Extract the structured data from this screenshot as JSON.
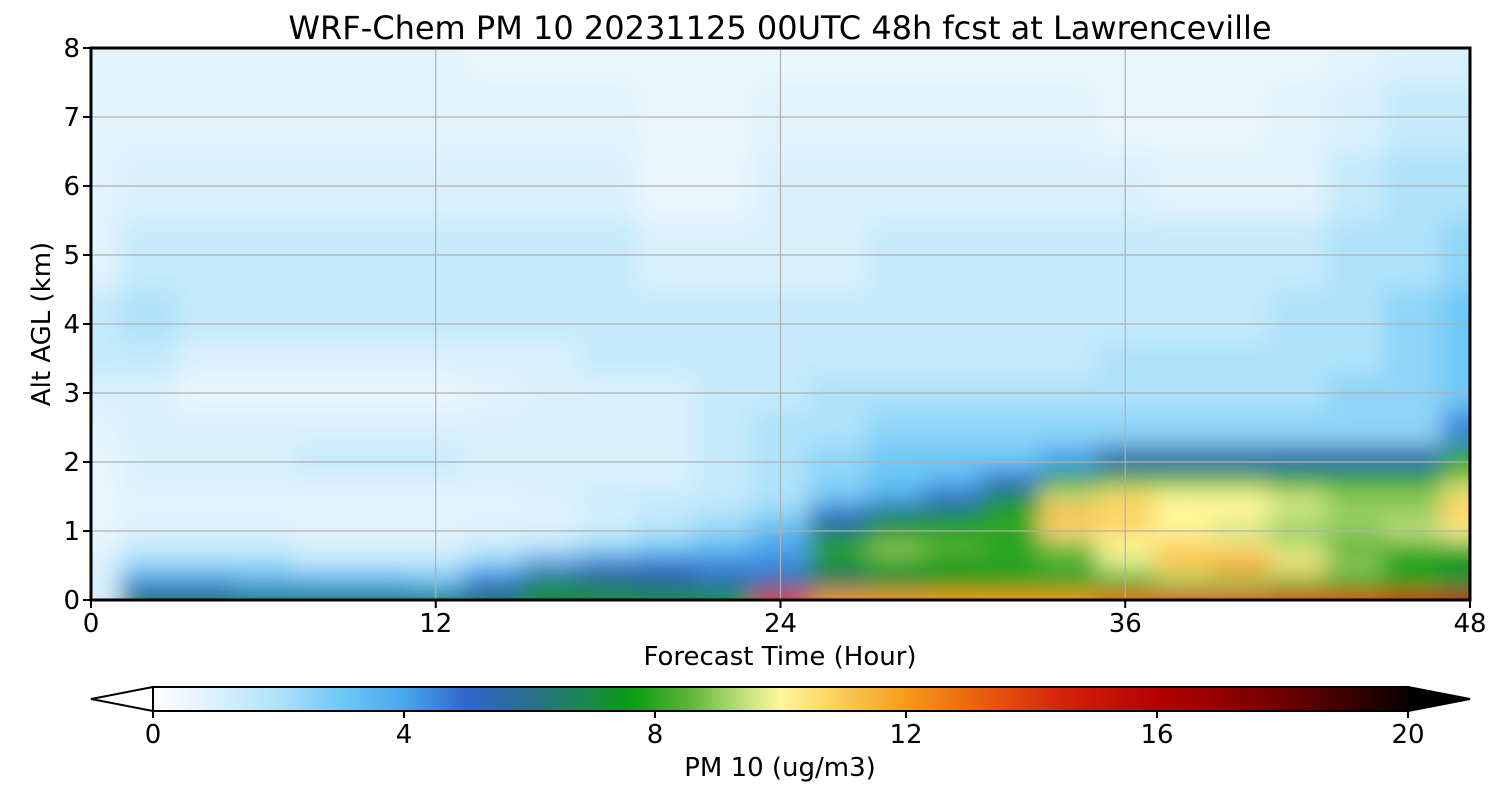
{
  "chart_data": {
    "type": "heatmap",
    "title": "WRF-Chem PM 10  20231125 00UTC 48h fcst at Lawrenceville",
    "xlabel": "Forecast Time (Hour)",
    "ylabel": "Alt AGL (km)",
    "xlim": [
      0,
      48
    ],
    "ylim": [
      0,
      8
    ],
    "x_ticks": [
      "0",
      "12",
      "24",
      "36",
      "48"
    ],
    "y_ticks": [
      "0",
      "1",
      "2",
      "3",
      "4",
      "5",
      "6",
      "7",
      "8"
    ],
    "grid": true,
    "x": [
      0,
      2,
      4,
      6,
      8,
      10,
      12,
      14,
      16,
      18,
      20,
      22,
      24,
      26,
      28,
      30,
      32,
      34,
      36,
      38,
      40,
      42,
      44,
      46,
      48
    ],
    "y": [
      0,
      0.25,
      0.5,
      0.75,
      1,
      1.25,
      1.5,
      1.75,
      2,
      2.5,
      3,
      3.5,
      4,
      5,
      6,
      7,
      8
    ],
    "values": [
      [
        1.0,
        6.5,
        6.5,
        6.5,
        6.5,
        6.5,
        6.5,
        6.5,
        7.0,
        7.0,
        7.0,
        7.5,
        14.0,
        12.0,
        12.0,
        12.0,
        12.0,
        12.0,
        13.0,
        14.0,
        14.0,
        14.0,
        14.0,
        15.0,
        16.0
      ],
      [
        1.0,
        4.5,
        4.5,
        4.0,
        4.0,
        4.0,
        3.5,
        5.0,
        7.0,
        6.5,
        6.0,
        5.5,
        5.5,
        6.5,
        7.0,
        7.5,
        7.5,
        7.5,
        8.0,
        9.0,
        9.0,
        8.5,
        8.0,
        7.5,
        7.0
      ],
      [
        1.0,
        2.5,
        2.5,
        2.5,
        2.0,
        2.0,
        2.0,
        3.0,
        4.5,
        5.0,
        5.0,
        4.5,
        4.5,
        7.0,
        7.5,
        7.5,
        8.0,
        8.5,
        9.5,
        11.0,
        12.0,
        10.5,
        9.0,
        8.0,
        7.5
      ],
      [
        0.8,
        1.5,
        1.5,
        1.5,
        1.0,
        1.0,
        1.0,
        1.5,
        2.0,
        2.5,
        3.0,
        3.5,
        4.0,
        8.0,
        9.0,
        8.5,
        8.0,
        8.5,
        10.0,
        11.0,
        10.5,
        9.5,
        8.5,
        8.0,
        8.0
      ],
      [
        0.6,
        1.0,
        1.0,
        1.0,
        0.8,
        0.8,
        0.8,
        1.0,
        1.0,
        1.5,
        2.0,
        2.5,
        3.5,
        6.5,
        7.5,
        8.0,
        8.0,
        10.5,
        10.5,
        10.0,
        9.5,
        9.0,
        9.0,
        9.5,
        10.0
      ],
      [
        0.6,
        0.8,
        0.8,
        0.8,
        0.8,
        0.8,
        0.8,
        0.8,
        0.8,
        1.0,
        1.5,
        2.0,
        2.5,
        5.0,
        6.5,
        7.0,
        8.0,
        11.5,
        11.0,
        10.0,
        10.0,
        9.5,
        9.0,
        9.0,
        11.0
      ],
      [
        0.6,
        0.8,
        0.8,
        0.8,
        0.8,
        0.8,
        0.8,
        0.8,
        1.0,
        1.5,
        1.5,
        1.5,
        2.0,
        3.0,
        4.0,
        5.0,
        7.0,
        9.5,
        10.5,
        10.0,
        10.0,
        9.5,
        9.0,
        9.0,
        10.5
      ],
      [
        0.6,
        1.0,
        1.0,
        1.0,
        1.0,
        1.0,
        1.0,
        1.0,
        1.0,
        1.0,
        1.0,
        1.5,
        2.0,
        2.5,
        3.0,
        3.5,
        5.0,
        7.5,
        8.5,
        8.5,
        8.5,
        8.0,
        8.0,
        8.0,
        9.0
      ],
      [
        0.6,
        1.0,
        1.0,
        1.0,
        1.5,
        1.5,
        1.5,
        1.0,
        1.0,
        1.0,
        1.0,
        1.5,
        2.0,
        2.5,
        3.0,
        3.0,
        3.0,
        4.0,
        5.5,
        5.5,
        5.5,
        5.5,
        5.5,
        5.5,
        8.0
      ],
      [
        0.8,
        1.0,
        1.0,
        1.0,
        1.0,
        1.0,
        1.0,
        1.0,
        1.0,
        1.0,
        1.0,
        1.5,
        2.0,
        2.0,
        2.5,
        2.5,
        2.5,
        2.5,
        2.5,
        2.5,
        2.5,
        2.5,
        2.5,
        2.5,
        4.5
      ],
      [
        1.0,
        1.0,
        0.6,
        0.6,
        0.6,
        0.6,
        0.6,
        0.8,
        1.0,
        1.0,
        1.0,
        1.5,
        1.5,
        2.0,
        2.0,
        2.0,
        2.0,
        2.0,
        2.0,
        2.0,
        2.0,
        2.0,
        2.5,
        2.5,
        3.0
      ],
      [
        1.5,
        1.5,
        1.0,
        1.0,
        1.0,
        1.0,
        1.0,
        1.0,
        1.0,
        1.5,
        1.5,
        1.5,
        1.5,
        1.5,
        1.5,
        1.5,
        1.5,
        1.5,
        2.0,
        2.0,
        2.0,
        2.0,
        2.0,
        2.5,
        3.0
      ],
      [
        1.5,
        2.0,
        1.5,
        1.5,
        1.5,
        1.5,
        1.5,
        1.5,
        1.5,
        1.5,
        1.5,
        1.5,
        1.5,
        1.5,
        1.5,
        1.5,
        1.5,
        1.5,
        1.5,
        1.5,
        1.5,
        2.0,
        2.0,
        2.5,
        3.0
      ],
      [
        0.8,
        1.5,
        1.5,
        1.5,
        1.5,
        1.5,
        1.5,
        1.5,
        1.5,
        1.5,
        1.0,
        1.0,
        1.0,
        1.0,
        1.5,
        1.5,
        1.5,
        1.5,
        1.5,
        1.5,
        1.5,
        1.5,
        2.0,
        2.0,
        2.5
      ],
      [
        0.8,
        1.0,
        1.0,
        1.0,
        1.0,
        1.0,
        1.0,
        1.0,
        1.0,
        1.0,
        0.6,
        0.6,
        1.0,
        1.0,
        1.0,
        1.0,
        1.0,
        1.0,
        1.0,
        0.8,
        0.8,
        0.8,
        1.5,
        2.0,
        2.0
      ],
      [
        0.8,
        0.8,
        0.8,
        0.8,
        0.8,
        0.8,
        0.8,
        0.8,
        0.8,
        0.8,
        0.6,
        0.6,
        0.8,
        0.8,
        0.8,
        0.8,
        0.8,
        0.8,
        0.6,
        0.6,
        0.6,
        0.8,
        1.0,
        1.5,
        1.5
      ],
      [
        0.8,
        0.8,
        0.8,
        0.8,
        0.8,
        0.8,
        0.8,
        0.6,
        0.6,
        0.6,
        0.6,
        0.6,
        0.6,
        0.6,
        0.6,
        0.6,
        0.6,
        0.6,
        0.6,
        0.6,
        0.6,
        0.6,
        0.8,
        1.0,
        1.0
      ]
    ],
    "colorbar": {
      "label": "PM 10  (ug/m3)",
      "min": 0,
      "max": 20,
      "ticks": [
        "0",
        "4",
        "8",
        "12",
        "16",
        "20"
      ],
      "extend": "both"
    }
  }
}
